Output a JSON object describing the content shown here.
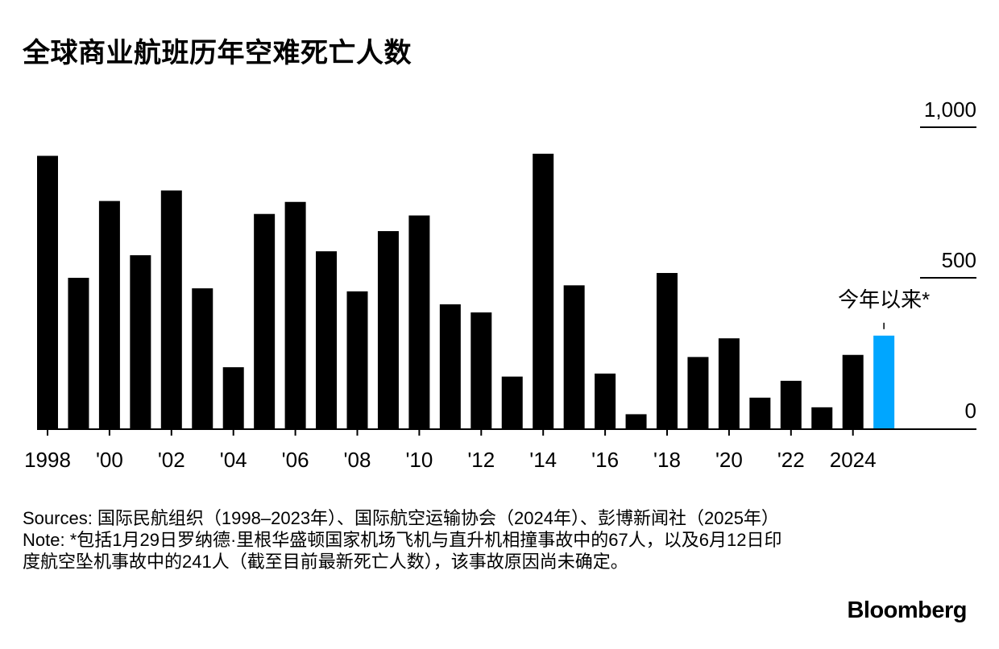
{
  "title": "全球商业航班历年空难死亡人数",
  "chart_data": {
    "type": "bar",
    "categories": [
      "1998",
      "1999",
      "2000",
      "2001",
      "2002",
      "2003",
      "2004",
      "2005",
      "2006",
      "2007",
      "2008",
      "2009",
      "2010",
      "2011",
      "2012",
      "2013",
      "2014",
      "2015",
      "2016",
      "2017",
      "2018",
      "2019",
      "2020",
      "2021",
      "2022",
      "2023",
      "2024",
      "2025"
    ],
    "values": [
      905,
      500,
      755,
      575,
      790,
      465,
      203,
      712,
      752,
      588,
      455,
      655,
      707,
      412,
      385,
      172,
      912,
      475,
      182,
      47,
      516,
      237,
      299,
      102,
      158,
      70,
      244,
      308
    ],
    "x_tick_labels": [
      {
        "category": "1998",
        "label": "1998"
      },
      {
        "category": "2000",
        "label": "'00"
      },
      {
        "category": "2002",
        "label": "'02"
      },
      {
        "category": "2004",
        "label": "'04"
      },
      {
        "category": "2006",
        "label": "'06"
      },
      {
        "category": "2008",
        "label": "'08"
      },
      {
        "category": "2010",
        "label": "'10"
      },
      {
        "category": "2012",
        "label": "'12"
      },
      {
        "category": "2014",
        "label": "'14"
      },
      {
        "category": "2016",
        "label": "'16"
      },
      {
        "category": "2018",
        "label": "'18"
      },
      {
        "category": "2020",
        "label": "'20"
      },
      {
        "category": "2022",
        "label": "'22"
      },
      {
        "category": "2024",
        "label": "2024"
      }
    ],
    "y_ticks": [
      {
        "value": 0,
        "label": "0"
      },
      {
        "value": 500,
        "label": "500"
      },
      {
        "value": 1000,
        "label": "1,000"
      }
    ],
    "ylim": [
      0,
      1000
    ],
    "bar_color": "#000000",
    "highlight": {
      "category": "2025",
      "color": "#00a6ff",
      "annotation": "今年以来*"
    },
    "grid": false,
    "legend": "none"
  },
  "sources": "Sources: 国际民航组织（1998–2023年）、国际航空运输协会（2024年）、彭博新闻社（2025年）",
  "note": "Note: *包括1月29日罗纳德·里根华盛顿国家机场飞机与直升机相撞事故中的67人，以及6月12日印度航空坠机事故中的241人（截至目前最新死亡人数），该事故原因尚未确定。",
  "brand": "Bloomberg"
}
